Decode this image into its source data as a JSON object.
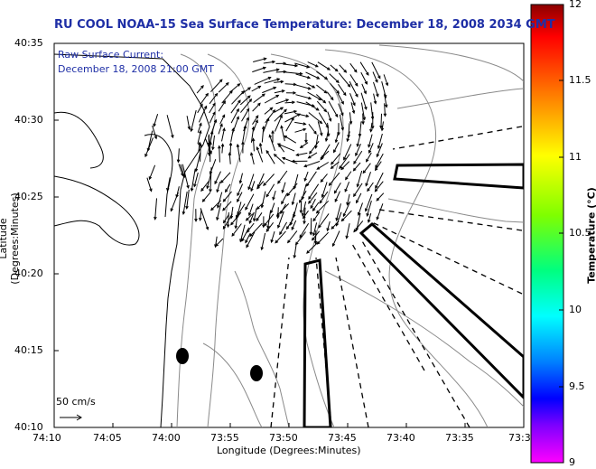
{
  "title": "RU COOL  NOAA-15  Sea Surface Temperature:  December 18, 2008 2034 GMT",
  "overlay": {
    "line1": "Raw Surface Current:",
    "line2": "December 18, 2008 21:00 GMT"
  },
  "scale_label": "50 cm/s",
  "axes": {
    "xlabel": "Longitude (Degrees:Minutes)",
    "ylabel": "Latitude (Degrees:Minutes)",
    "xticks": [
      "74:10",
      "74:05",
      "74:00",
      "73:55",
      "73:50",
      "73:45",
      "73:40",
      "73:35",
      "73:3"
    ],
    "yticks": [
      "40:35",
      "40:30",
      "40:25",
      "40:20",
      "40:15",
      "40:10"
    ]
  },
  "colorbar": {
    "label": "Temperature (°C)",
    "ticks": [
      "12",
      "11.5",
      "11",
      "10.5",
      "10",
      "9.5",
      "9"
    ]
  }
}
